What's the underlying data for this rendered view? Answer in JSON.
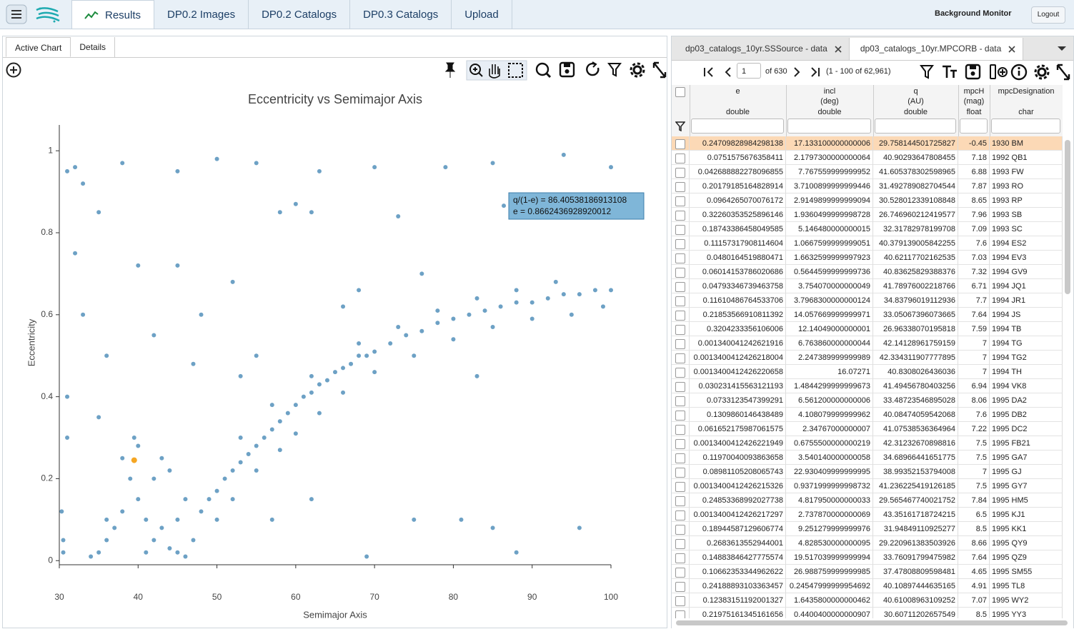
{
  "nav": {
    "tabs": [
      "Results",
      "DP0.2 Images",
      "DP0.2 Catalogs",
      "DP0.3 Catalogs",
      "Upload"
    ],
    "active": 0,
    "right": [
      "Background Monitor",
      "Logout"
    ]
  },
  "left_panel": {
    "tabs": [
      "Active Chart",
      "Details"
    ],
    "active": 0
  },
  "chart_data": {
    "type": "scatter",
    "title": "Eccentricity vs Semimajor Axis",
    "x_label": "Semimajor Axis",
    "y_label": "Eccentricity",
    "color": "#1f6fa6",
    "x": [
      48,
      49,
      50,
      51,
      52,
      53,
      54,
      55,
      56,
      57,
      58,
      59,
      60,
      61,
      62,
      63,
      64,
      65,
      66,
      67,
      68,
      69,
      70,
      72,
      74,
      76,
      78,
      80,
      82,
      84,
      86,
      88,
      90,
      92,
      94,
      96,
      98,
      100,
      50,
      52,
      55,
      58,
      60,
      63,
      66,
      70,
      75,
      80,
      85,
      90,
      95,
      99,
      53,
      57,
      62,
      68,
      73,
      78,
      83,
      88,
      93,
      35,
      36,
      37,
      38,
      39,
      39.5,
      40,
      41,
      42,
      43,
      44,
      45,
      46,
      47,
      34,
      38,
      40,
      42,
      44,
      43,
      36,
      41,
      45,
      46,
      30.5,
      30.3,
      30.5,
      31,
      32,
      33,
      38,
      45,
      50,
      55,
      63,
      70,
      79,
      85,
      94,
      100,
      35,
      58,
      60,
      62,
      73,
      32,
      40,
      45,
      52,
      68,
      76,
      33,
      36,
      42,
      47,
      55,
      66,
      83,
      31,
      35,
      57,
      62,
      75,
      85,
      69,
      81,
      96,
      31,
      48,
      53,
      88,
      86.4
    ],
    "y": [
      0.12,
      0.15,
      0.17,
      0.2,
      0.22,
      0.24,
      0.26,
      0.28,
      0.3,
      0.32,
      0.34,
      0.36,
      0.38,
      0.4,
      0.41,
      0.43,
      0.44,
      0.46,
      0.47,
      0.48,
      0.5,
      0.5,
      0.51,
      0.53,
      0.55,
      0.56,
      0.58,
      0.59,
      0.6,
      0.61,
      0.62,
      0.63,
      0.63,
      0.64,
      0.65,
      0.65,
      0.66,
      0.66,
      0.1,
      0.15,
      0.22,
      0.27,
      0.31,
      0.36,
      0.41,
      0.46,
      0.5,
      0.54,
      0.57,
      0.59,
      0.6,
      0.62,
      0.3,
      0.38,
      0.45,
      0.53,
      0.57,
      0.61,
      0.64,
      0.66,
      0.68,
      0.02,
      0.05,
      0.08,
      0.12,
      0.2,
      0.3,
      0.15,
      0.1,
      0.05,
      0.08,
      0.03,
      0.1,
      0.15,
      0.05,
      0.01,
      0.25,
      0.28,
      0.2,
      0.22,
      0.25,
      0.1,
      0.02,
      0.02,
      0.01,
      0.05,
      0.12,
      0.02,
      0.95,
      0.96,
      0.92,
      0.97,
      0.95,
      0.98,
      0.97,
      0.95,
      0.96,
      0.96,
      0.97,
      0.99,
      0.96,
      0.85,
      0.85,
      0.87,
      0.85,
      0.84,
      0.75,
      0.72,
      0.72,
      0.68,
      0.66,
      0.7,
      0.6,
      0.5,
      0.55,
      0.48,
      0.5,
      0.62,
      0.45,
      0.4,
      0.35,
      0.1,
      0.15,
      0.1,
      0.08,
      0.01,
      0.1,
      0.08,
      0.3,
      0.6,
      0.45,
      0.02,
      0.866
    ],
    "highlight": {
      "x": 39.5,
      "y": 0.245,
      "color": "#f5a623"
    },
    "tooltip": [
      "q/(1-e) = 86.40538186913108",
      "e = 0.8662436928920012"
    ],
    "xlim": [
      30,
      100
    ],
    "xticks": [
      30,
      40,
      50,
      60,
      70,
      80,
      90,
      100
    ],
    "ylim": [
      -0.01,
      1.063
    ],
    "yticks": [
      0,
      0.2,
      0.4,
      0.6,
      0.8,
      1
    ]
  },
  "table_panel": {
    "tabs": [
      "dp03_catalogs_10yr.SSSource - data",
      "dp03_catalogs_10yr.MPCORB - data"
    ],
    "active": 1,
    "page": "1",
    "page_count": "of 630",
    "range": "(1 - 100 of 62,961)",
    "columns": [
      {
        "name": "e",
        "type": "double"
      },
      {
        "name": "incl",
        "unit": "(deg)",
        "type": "double"
      },
      {
        "name": "q",
        "unit": "(AU)",
        "type": "double"
      },
      {
        "name": "mpcH",
        "unit": "(mag)",
        "type": "float"
      },
      {
        "name": "mpcDesignation",
        "type": "char"
      }
    ],
    "selected_row": 0,
    "rows": [
      [
        "0.24709828984298138",
        "17.133100000000006",
        "29.758144501725827",
        "-0.45",
        "1930 BM"
      ],
      [
        "0.0751575676358411",
        "2.1797300000000064",
        "40.90293647808455",
        "7.18",
        "1992 QB1"
      ],
      [
        "0.042688882278096855",
        "7.767559999999952",
        "41.605378302598965",
        "6.88",
        "1993 FW"
      ],
      [
        "0.20179185164828914",
        "3.7100899999999446",
        "31.492789082704544",
        "7.87",
        "1993 RO"
      ],
      [
        "0.0964265070076172",
        "2.9149899999999094",
        "30.528012339108848",
        "8.65",
        "1993 RP"
      ],
      [
        "0.32260353525896146",
        "1.9360499999998728",
        "26.746960212419577",
        "7.96",
        "1993 SB"
      ],
      [
        "0.18743386458049585",
        "5.146480000000015",
        "32.31782978199708",
        "7.09",
        "1993 SC"
      ],
      [
        "0.11157317908114604",
        "1.0667599999999051",
        "40.379139005842255",
        "7.6",
        "1994 ES2"
      ],
      [
        "0.0480164519880471",
        "1.6632599999997923",
        "40.62117702162535",
        "7.03",
        "1994 EV3"
      ],
      [
        "0.06014153786020686",
        "0.5644599999999736",
        "40.83625829388376",
        "7.32",
        "1994 GV9"
      ],
      [
        "0.04793346739463758",
        "3.754070000000049",
        "41.78976002218766",
        "6.71",
        "1994 JQ1"
      ],
      [
        "0.11610486764533706",
        "3.7968300000000124",
        "34.83796019112936",
        "7.7",
        "1994 JR1"
      ],
      [
        "0.21853566910811392",
        "14.057669999999971",
        "33.05067396073665",
        "7.64",
        "1994 JS"
      ],
      [
        "0.3204233356106006",
        "12.14049000000001",
        "26.96338070195818",
        "7.59",
        "1994 TB"
      ],
      [
        "0.001340041242621916",
        "6.763860000000044",
        "42.14128961759159",
        "7",
        "1994 TG"
      ],
      [
        "0.0013400412426218004",
        "2.247389999999989",
        "42.334311907777895",
        "7",
        "1994 TG2"
      ],
      [
        "0.0013400412426220658",
        "16.07271",
        "40.8308026436036",
        "7",
        "1994 TH"
      ],
      [
        "0.030231415563121193",
        "1.4844299999999673",
        "41.49456780403256",
        "6.94",
        "1994 VK8"
      ],
      [
        "0.0733123547399291",
        "6.561200000000006",
        "33.48723546895028",
        "8.06",
        "1995 DA2"
      ],
      [
        "0.1309860146438489",
        "4.108079999999962",
        "40.08474059542068",
        "7.6",
        "1995 DB2"
      ],
      [
        "0.061652175987061575",
        "2.34767000000007",
        "41.07538536364964",
        "7.22",
        "1995 DC2"
      ],
      [
        "0.0013400412426221949",
        "0.6755500000000219",
        "42.31232670898816",
        "7.5",
        "1995 FB21"
      ],
      [
        "0.11970040093863658",
        "3.540140000000058",
        "34.68966441651775",
        "7.5",
        "1995 GA7"
      ],
      [
        "0.08981105208065743",
        "22.930409999999995",
        "38.99352153794008",
        "7",
        "1995 GJ"
      ],
      [
        "0.0013400412426215326",
        "0.9371999999998732",
        "41.236225419126185",
        "7.5",
        "1995 GY7"
      ],
      [
        "0.24853368992027738",
        "4.817950000000033",
        "29.565467740021752",
        "7.84",
        "1995 HM5"
      ],
      [
        "0.0013400412426217297",
        "2.737870000000069",
        "43.35161718724215",
        "6.5",
        "1995 KJ1"
      ],
      [
        "0.18944587129606774",
        "9.251279999999976",
        "31.94849110925277",
        "8.5",
        "1995 KK1"
      ],
      [
        "0.2683613552944001",
        "4.828530000000095",
        "29.220961383503926",
        "8.66",
        "1995 QY9"
      ],
      [
        "0.14883846427775574",
        "19.517039999999994",
        "33.76091799475982",
        "7.64",
        "1995 QZ9"
      ],
      [
        "0.10662353344962622",
        "26.988759999999985",
        "37.47808809598481",
        "4.65",
        "1995 SM55"
      ],
      [
        "0.24188893103363457",
        "0.24547999999954692",
        "40.10897444635165",
        "4.91",
        "1995 TL8"
      ],
      [
        "0.12383151192001327",
        "1.6435800000000462",
        "40.61008963109252",
        "7.07",
        "1995 WY2"
      ],
      [
        "0.21975161345161656",
        "0.4400400000000907",
        "30.60711202657549",
        "8.5",
        "1995 YY3"
      ]
    ]
  }
}
